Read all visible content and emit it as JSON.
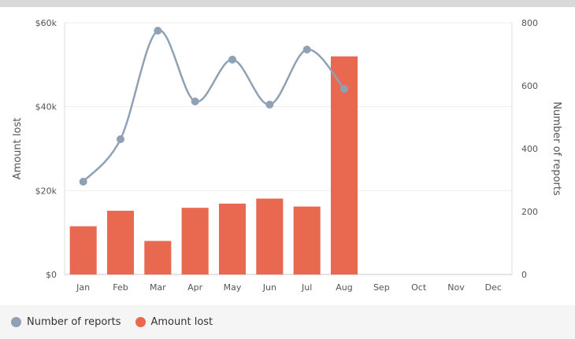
{
  "chart_data": {
    "type": "bar+line",
    "categories": [
      "Jan",
      "Feb",
      "Mar",
      "Apr",
      "May",
      "Jun",
      "Jul",
      "Aug",
      "Sep",
      "Oct",
      "Nov",
      "Dec"
    ],
    "series": [
      {
        "name": "Amount lost",
        "type": "bar",
        "axis": "left",
        "color": "#e8694f",
        "values": [
          11500,
          15200,
          8000,
          15900,
          16900,
          18100,
          16200,
          52000,
          null,
          null,
          null,
          null
        ]
      },
      {
        "name": "Number of reports",
        "type": "line",
        "axis": "right",
        "color": "#8fa1b4",
        "values": [
          295,
          430,
          775,
          550,
          683,
          540,
          715,
          590,
          null,
          null,
          null,
          null
        ]
      }
    ],
    "y_left": {
      "label": "Amount lost",
      "min": 0,
      "max": 60000,
      "ticks": [
        "$0",
        "$20k",
        "$40k",
        "$60k"
      ],
      "tick_values": [
        0,
        20000,
        40000,
        60000
      ]
    },
    "y_right": {
      "label": "Number of reports",
      "min": 0,
      "max": 800,
      "ticks": [
        "0",
        "200",
        "400",
        "600",
        "800"
      ],
      "tick_values": [
        0,
        200,
        400,
        600,
        800
      ]
    },
    "grid": true,
    "legend_position": "bottom-left"
  },
  "legend": {
    "items": [
      {
        "label": "Number of reports",
        "color": "#8fa1b4"
      },
      {
        "label": "Amount lost",
        "color": "#e8694f"
      }
    ]
  }
}
